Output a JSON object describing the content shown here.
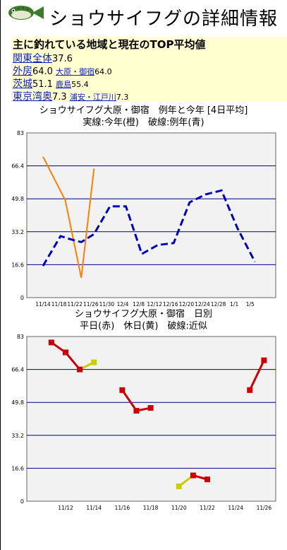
{
  "header": {
    "title": "ショウサイフグの詳細情報",
    "fish_icon": "pufferfish-icon"
  },
  "info": {
    "heading": "主に釣れている地域と現在のTOP平均値",
    "rows": [
      {
        "region": "関東全体",
        "value": "37.6"
      },
      {
        "region": "外房",
        "value": "64.0",
        "sub_region": "大原・御宿",
        "sub_value": "64.0"
      },
      {
        "region": "茨城",
        "value": "51.1",
        "sub_region": "鹿島",
        "sub_value": "55.4"
      },
      {
        "region": "東京湾奥",
        "value": "7.3",
        "sub_region": "浦安・江戸川",
        "sub_value": "7.3"
      }
    ]
  },
  "chart1": {
    "title_line1": "ショウサイフグ大原・御宿　例年と今年 [4日平均]",
    "title_line2": "実線:今年(橙)　破線:例年(青)"
  },
  "chart2": {
    "title_line1": "ショウサイフグ大原・御宿　日別",
    "title_line2": "平日(赤)　休日(黄)　破線:近似"
  },
  "chart_data": [
    {
      "type": "line",
      "title": "ショウサイフグ大原・御宿　例年と今年 [4日平均]",
      "subtitle": "実線:今年(橙)　破線:例年(青)",
      "x_ticks": [
        "11/14",
        "11/18",
        "11/22",
        "11/26",
        "11/30",
        "12/4",
        "12/8",
        "12/12",
        "12/16",
        "12/20",
        "12/24",
        "12/28",
        "1/1",
        "1/5"
      ],
      "y_ticks": [
        0,
        16.6,
        33.2,
        49.8,
        66.4,
        83
      ],
      "ylim": [
        0,
        83
      ],
      "grid": true,
      "series": [
        {
          "color": "#ff8000",
          "style": "solid",
          "points": [
            [
              0,
              71
            ],
            [
              1.4,
              49
            ],
            [
              2.4,
              10
            ],
            [
              3.2,
              65
            ]
          ]
        },
        {
          "color": "#0000c0",
          "style": "dashed",
          "points": [
            [
              0,
              16
            ],
            [
              1.1,
              31
            ],
            [
              1.9,
              29
            ],
            [
              2.4,
              28
            ],
            [
              3.2,
              32
            ],
            [
              4.2,
              46
            ],
            [
              5.2,
              46
            ],
            [
              6.2,
              22
            ],
            [
              7.2,
              26.5
            ],
            [
              8.2,
              27.5
            ],
            [
              9.2,
              48
            ],
            [
              10.2,
              52
            ],
            [
              11.2,
              54
            ],
            [
              12.2,
              35
            ],
            [
              13.3,
              18
            ]
          ]
        }
      ]
    },
    {
      "type": "line",
      "title": "ショウサイフグ大原・御宿　日別",
      "subtitle": "平日(赤)　休日(黄)　破線:近似",
      "x_ticks": [
        "11/12",
        "11/14",
        "11/16",
        "11/18",
        "11/20",
        "11/22",
        "11/24",
        "11/26"
      ],
      "x_tick_days": [
        12,
        14,
        16,
        18,
        20,
        22,
        24,
        26
      ],
      "y_ticks": [
        0,
        16.6,
        33.2,
        49.8,
        66.4,
        83
      ],
      "ylim": [
        0,
        83
      ],
      "grid": true,
      "segments": [
        [
          {
            "d": 11,
            "v": 80,
            "k": "w"
          },
          {
            "d": 12,
            "v": 75,
            "k": "w"
          },
          {
            "d": 13,
            "v": 66.4,
            "k": "w"
          },
          {
            "d": 14,
            "v": 70,
            "k": "h"
          }
        ],
        [
          {
            "d": 16,
            "v": 56,
            "k": "w"
          },
          {
            "d": 17,
            "v": 45.6,
            "k": "w"
          },
          {
            "d": 18,
            "v": 47,
            "k": "w"
          }
        ],
        [
          {
            "d": 20,
            "v": 7.5,
            "k": "h"
          },
          {
            "d": 21,
            "v": 13,
            "k": "w"
          },
          {
            "d": 22,
            "v": 11,
            "k": "w"
          }
        ],
        [
          {
            "d": 25,
            "v": 56,
            "k": "w"
          },
          {
            "d": 26,
            "v": 71,
            "k": "w"
          }
        ]
      ],
      "colors": {
        "weekday": "#cc0000",
        "holiday": "#cccc00"
      }
    }
  ]
}
